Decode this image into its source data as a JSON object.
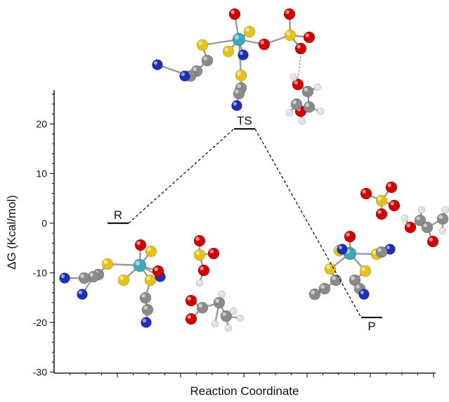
{
  "chart_data": {
    "type": "line",
    "title": "",
    "xlabel": "Reaction Coordinate",
    "ylabel": "ΔG (Kcal/mol)",
    "ylim": [
      -30,
      27
    ],
    "yticks": [
      -30,
      -20,
      -10,
      0,
      10,
      20
    ],
    "xticks_labeled": false,
    "grid": false,
    "legend": "none",
    "series": [
      {
        "points": [
          {
            "label": "R",
            "x": 1,
            "y": 0
          },
          {
            "label": "TS",
            "x": 2,
            "y": 19
          },
          {
            "label": "P",
            "x": 3,
            "y": -19
          }
        ]
      }
    ],
    "colors": {
      "axis": "#222222",
      "level_line": "#111111",
      "connector": "#111111",
      "carbon": "#8a8a8a",
      "oxygen": "#cc0000",
      "sulfur": "#e2c21b",
      "nitrogen": "#1f2fb5",
      "metal": "#3fa7b5",
      "hydrogen": "#e0e0e0",
      "bond": "#9a9a9a"
    },
    "molecule_icons": [
      "ts-complex-molecule-icon",
      "reactant-complex-molecule-icon",
      "reactant-acid-molecule-icon",
      "reactant-ester-molecule-icon",
      "product-complex-molecule-icon",
      "product-sulfate-molecule-icon",
      "product-ester-molecule-icon"
    ]
  }
}
